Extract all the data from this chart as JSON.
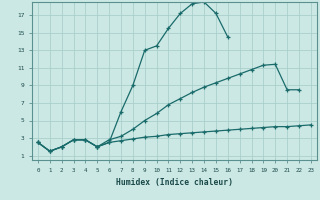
{
  "bg_color": "#cce8e4",
  "grid_color": "#aacfcc",
  "line_color": "#1a6b6b",
  "xlabel": "Humidex (Indice chaleur)",
  "xlim": [
    -0.5,
    23.5
  ],
  "ylim": [
    0.5,
    18.5
  ],
  "yticks": [
    1,
    3,
    5,
    7,
    9,
    11,
    13,
    15,
    17
  ],
  "xticks": [
    0,
    1,
    2,
    3,
    4,
    5,
    6,
    7,
    8,
    9,
    10,
    11,
    12,
    13,
    14,
    15,
    16,
    17,
    18,
    19,
    20,
    21,
    22,
    23
  ],
  "line1_x": [
    0,
    1,
    2,
    3,
    4,
    5,
    6,
    7,
    8,
    9,
    10,
    11,
    12,
    13,
    14,
    15,
    16
  ],
  "line1_y": [
    2.5,
    1.5,
    2.0,
    2.8,
    2.8,
    2.0,
    2.5,
    6.0,
    9.0,
    13.0,
    13.5,
    15.5,
    17.2,
    18.3,
    18.5,
    17.2,
    14.5
  ],
  "line2_x": [
    0,
    1,
    2,
    3,
    4,
    5,
    6,
    7,
    8,
    9,
    10,
    11,
    12,
    13,
    14,
    15,
    16,
    17,
    18,
    19,
    20,
    21,
    22
  ],
  "line2_y": [
    2.5,
    1.5,
    2.0,
    2.8,
    2.8,
    2.0,
    2.8,
    3.2,
    4.0,
    5.0,
    5.8,
    6.8,
    7.5,
    8.2,
    8.8,
    9.3,
    9.8,
    10.3,
    10.8,
    11.3,
    11.4,
    8.5,
    8.5
  ],
  "line3_x": [
    0,
    1,
    2,
    3,
    4,
    5,
    6,
    7,
    8,
    9,
    10,
    11,
    12,
    13,
    14,
    15,
    16,
    17,
    18,
    19,
    20,
    21,
    22,
    23
  ],
  "line3_y": [
    2.5,
    1.5,
    2.0,
    2.8,
    2.8,
    2.0,
    2.5,
    2.7,
    2.9,
    3.1,
    3.2,
    3.4,
    3.5,
    3.6,
    3.7,
    3.8,
    3.9,
    4.0,
    4.1,
    4.2,
    4.3,
    4.3,
    4.4,
    4.5
  ]
}
